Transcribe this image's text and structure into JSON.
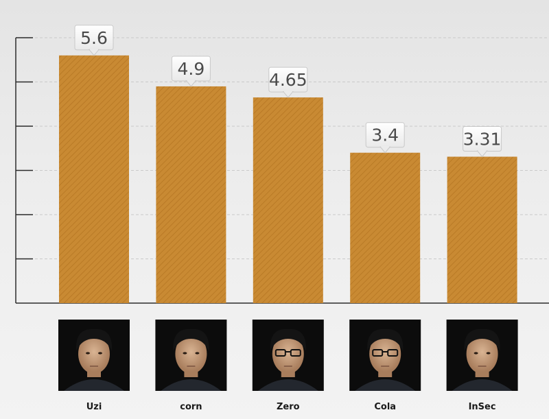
{
  "chart_data": {
    "type": "bar",
    "categories": [
      "Uzi",
      "corn",
      "Zero",
      "Cola",
      "InSec"
    ],
    "values": [
      5.6,
      4.9,
      4.65,
      3.4,
      3.31
    ],
    "data_labels": [
      "5.6",
      "4.9",
      "4.65",
      "3.4",
      "3.31"
    ],
    "title": "",
    "xlabel": "",
    "ylabel": "",
    "ylim": [
      0,
      6
    ],
    "grid": true,
    "legend": "none",
    "bar_color": "#c98a33"
  }
}
